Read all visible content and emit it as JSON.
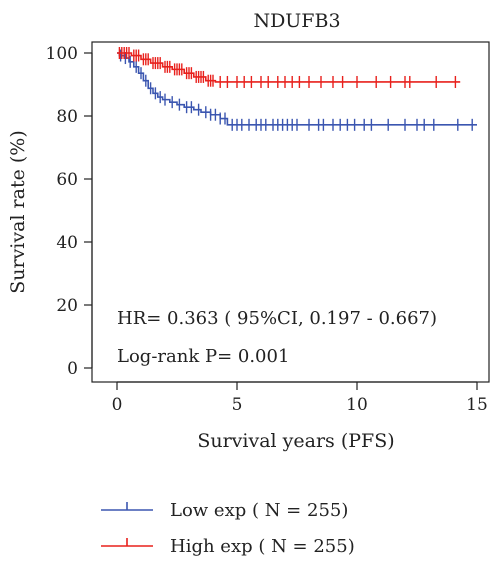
{
  "chart_data": {
    "type": "line",
    "subtype": "kaplan-meier",
    "title": "NDUFB3",
    "xlabel": "Survival years (PFS)",
    "ylabel": "Survival rate (%)",
    "xlim": [
      0,
      15
    ],
    "ylim": [
      0,
      100
    ],
    "xticks": [
      0,
      5,
      10,
      15
    ],
    "yticks": [
      0,
      20,
      40,
      60,
      80,
      100
    ],
    "grid": false,
    "legend_position": "below",
    "annotations": [
      "HR= 0.363 ( 95%CI, 0.197 - 0.667)",
      "Log-rank P= 0.001"
    ],
    "series": [
      {
        "name": "Low exp ( N = 255)",
        "color": "#3b56b0",
        "steps": [
          [
            0,
            100
          ],
          [
            0.1,
            99.2
          ],
          [
            0.3,
            98.4
          ],
          [
            0.5,
            97.2
          ],
          [
            0.7,
            95.6
          ],
          [
            0.9,
            93.6
          ],
          [
            1.1,
            91.2
          ],
          [
            1.3,
            88.8
          ],
          [
            1.5,
            87.2
          ],
          [
            1.7,
            86.0
          ],
          [
            1.9,
            85.2
          ],
          [
            2.2,
            84.4
          ],
          [
            2.5,
            83.6
          ],
          [
            2.8,
            82.8
          ],
          [
            3.2,
            82.0
          ],
          [
            3.5,
            81.2
          ],
          [
            3.9,
            80.4
          ],
          [
            4.3,
            79.2
          ],
          [
            4.6,
            77.2
          ],
          [
            15,
            77.2
          ]
        ],
        "censored_x": [
          0.15,
          0.35,
          0.55,
          0.8,
          1.0,
          1.2,
          1.4,
          1.6,
          1.8,
          2.0,
          2.3,
          2.6,
          2.9,
          3.1,
          3.4,
          3.7,
          3.9,
          4.1,
          4.3,
          4.5,
          4.8,
          5.0,
          5.2,
          5.5,
          5.8,
          6.0,
          6.2,
          6.5,
          6.7,
          6.9,
          7.1,
          7.3,
          7.5,
          8.0,
          8.4,
          8.6,
          9.0,
          9.3,
          9.6,
          9.9,
          10.3,
          10.6,
          11.3,
          12.0,
          12.5,
          12.8,
          13.2,
          14.2,
          14.8
        ]
      },
      {
        "name": "High exp ( N = 255)",
        "color": "#e8201c",
        "steps": [
          [
            0,
            100
          ],
          [
            0.6,
            99.2
          ],
          [
            1.0,
            98.0
          ],
          [
            1.4,
            96.8
          ],
          [
            1.9,
            95.6
          ],
          [
            2.3,
            94.8
          ],
          [
            2.8,
            93.6
          ],
          [
            3.2,
            92.4
          ],
          [
            3.7,
            91.2
          ],
          [
            4.1,
            90.8
          ],
          [
            14.3,
            90.8
          ]
        ],
        "censored_x": [
          0.1,
          0.2,
          0.3,
          0.4,
          0.5,
          0.7,
          0.8,
          0.9,
          1.1,
          1.2,
          1.3,
          1.5,
          1.6,
          1.7,
          1.8,
          2.0,
          2.1,
          2.2,
          2.4,
          2.5,
          2.6,
          2.7,
          2.9,
          3.0,
          3.1,
          3.3,
          3.4,
          3.5,
          3.6,
          3.8,
          3.9,
          4.0,
          4.3,
          4.6,
          5.0,
          5.3,
          5.6,
          6.0,
          6.3,
          6.7,
          7.0,
          7.3,
          7.6,
          8.0,
          8.5,
          9.0,
          9.4,
          10.0,
          10.8,
          11.4,
          12.0,
          12.2,
          13.3,
          14.1
        ]
      }
    ]
  }
}
